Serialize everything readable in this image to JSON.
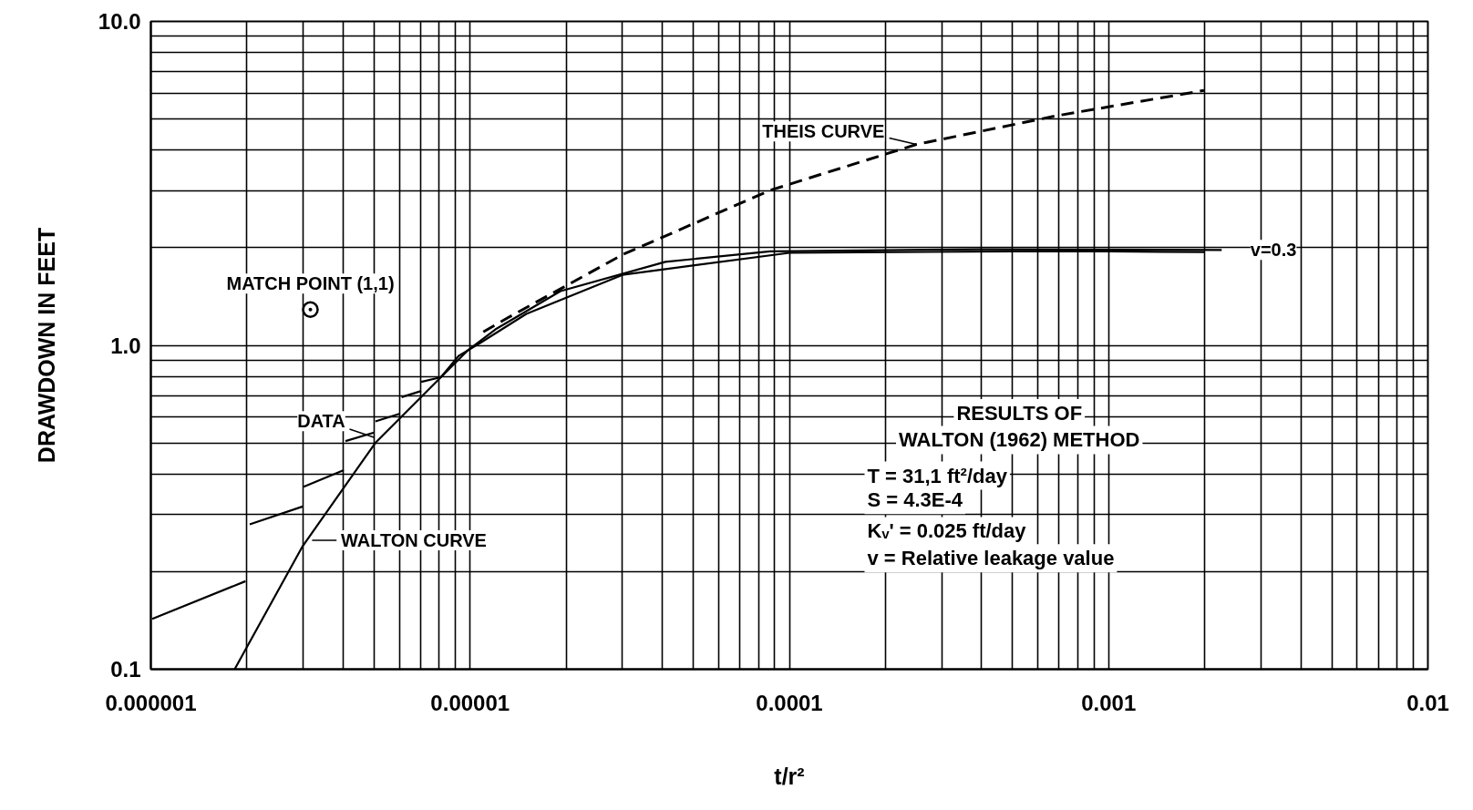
{
  "chart_data": {
    "type": "line",
    "xlabel": "t/r²",
    "ylabel": "DRAWDOWN IN FEET",
    "log": "xy",
    "grid": true,
    "xlim": [
      1e-06,
      0.01
    ],
    "ylim": [
      0.1,
      10
    ],
    "xticks": [
      {
        "value": 1e-06,
        "label": "0.000001"
      },
      {
        "value": 2e-06,
        "label": null
      },
      {
        "value": 3e-06,
        "label": null
      },
      {
        "value": 4e-06,
        "label": null
      },
      {
        "value": 5e-06,
        "label": null
      },
      {
        "value": 6e-06,
        "label": null
      },
      {
        "value": 7e-06,
        "label": null
      },
      {
        "value": 8e-06,
        "label": null
      },
      {
        "value": 9e-06,
        "label": null
      },
      {
        "value": 1e-05,
        "label": "0.00001"
      },
      {
        "value": 2e-05,
        "label": null
      },
      {
        "value": 3e-05,
        "label": null
      },
      {
        "value": 4e-05,
        "label": null
      },
      {
        "value": 5e-05,
        "label": null
      },
      {
        "value": 6e-05,
        "label": null
      },
      {
        "value": 7e-05,
        "label": null
      },
      {
        "value": 8e-05,
        "label": null
      },
      {
        "value": 9e-05,
        "label": null
      },
      {
        "value": 0.0001,
        "label": "0.0001"
      },
      {
        "value": 0.0002,
        "label": null
      },
      {
        "value": 0.0003,
        "label": null
      },
      {
        "value": 0.0004,
        "label": null
      },
      {
        "value": 0.0005,
        "label": null
      },
      {
        "value": 0.0006,
        "label": null
      },
      {
        "value": 0.0007,
        "label": null
      },
      {
        "value": 0.0008,
        "label": null
      },
      {
        "value": 0.0009,
        "label": null
      },
      {
        "value": 0.001,
        "label": "0.001"
      },
      {
        "value": 0.002,
        "label": null
      },
      {
        "value": 0.003,
        "label": null
      },
      {
        "value": 0.004,
        "label": null
      },
      {
        "value": 0.005,
        "label": null
      },
      {
        "value": 0.006,
        "label": null
      },
      {
        "value": 0.007,
        "label": null
      },
      {
        "value": 0.008,
        "label": null
      },
      {
        "value": 0.009,
        "label": null
      },
      {
        "value": 0.01,
        "label": "0.01"
      }
    ],
    "yticks": [
      {
        "value": 0.1,
        "label": "0.1"
      },
      {
        "value": 0.2,
        "label": null
      },
      {
        "value": 0.3,
        "label": null
      },
      {
        "value": 0.4,
        "label": null
      },
      {
        "value": 0.5,
        "label": null
      },
      {
        "value": 0.6,
        "label": null
      },
      {
        "value": 0.7,
        "label": null
      },
      {
        "value": 0.8,
        "label": null
      },
      {
        "value": 0.9,
        "label": null
      },
      {
        "value": 1,
        "label": "1.0"
      },
      {
        "value": 2,
        "label": null
      },
      {
        "value": 3,
        "label": null
      },
      {
        "value": 4,
        "label": null
      },
      {
        "value": 5,
        "label": null
      },
      {
        "value": 6,
        "label": null
      },
      {
        "value": 7,
        "label": null
      },
      {
        "value": 8,
        "label": null
      },
      {
        "value": 9,
        "label": null
      },
      {
        "value": 10,
        "label": "10.0"
      }
    ],
    "series": [
      {
        "color": "#000000",
        "line_style": "solid",
        "x": [
          1.01e-06,
          1.98e-06,
          null,
          2.04e-06,
          2.99e-06,
          null,
          3.01e-06,
          4.02e-06,
          null,
          4.07e-06,
          5e-06,
          null,
          5.05e-06,
          6.03e-06,
          null,
          6.1e-06,
          7.03e-06,
          null,
          7.03e-06,
          8.1e-06,
          9.2e-06,
          1.08e-05,
          1.5e-05,
          3e-05,
          0.0001,
          0.0005,
          0.001,
          0.002
        ],
        "values": [
          0.143,
          0.187,
          null,
          0.28,
          0.318,
          null,
          0.366,
          0.412,
          null,
          0.506,
          0.538,
          null,
          0.582,
          0.615,
          null,
          0.692,
          0.723,
          null,
          0.771,
          0.797,
          0.927,
          1.02,
          1.25,
          1.65,
          1.93,
          1.95,
          1.95,
          1.94
        ]
      },
      {
        "color": "#000000",
        "line_style": "solid",
        "x": [
          1.83e-06,
          2.99e-06,
          5.05e-06,
          8.1e-06,
          9.87e-06,
          1.2e-05,
          1.92e-05,
          4.09e-05,
          8.7e-05,
          0.000393,
          0.00226
        ],
        "values": [
          0.1,
          0.24,
          0.5,
          0.797,
          0.968,
          1.12,
          1.47,
          1.81,
          1.95,
          1.98,
          1.97
        ]
      },
      {
        "color": "#000000",
        "line_style": "dashed",
        "x": [
          1.1e-05,
          1.32e-05,
          3.02e-05,
          8.7e-05,
          0.00025,
          0.000692,
          0.00199
        ],
        "values": [
          1.1,
          1.22,
          1.91,
          3.01,
          4.17,
          5.12,
          6.12
        ]
      },
      {
        "type": "scatter",
        "marker": "circle",
        "color": "#000000",
        "x": [
          3.16e-06
        ],
        "values": [
          1.29
        ]
      }
    ],
    "annotations": [
      {
        "text": "THEIS CURVE",
        "x": 0.00025,
        "y": 4.17
      },
      {
        "text": "v=0.3",
        "x": 0.00226,
        "y": 1.97
      },
      {
        "text": "MATCH POINT (1,1)",
        "x": 3.16e-06,
        "y": 1.29
      },
      {
        "text": "DATA",
        "x": 5e-06,
        "y": 0.52
      },
      {
        "text": "WALTON CURVE",
        "x": 3.2e-06,
        "y": 0.25
      },
      "RESULTS OF",
      "WALTON (1962) METHOD",
      "T = 31,1 ft²/day",
      "S = 4.3E-4",
      "Kᵥ' = 0.025 ft/day",
      "v = Relative leakage value"
    ]
  }
}
